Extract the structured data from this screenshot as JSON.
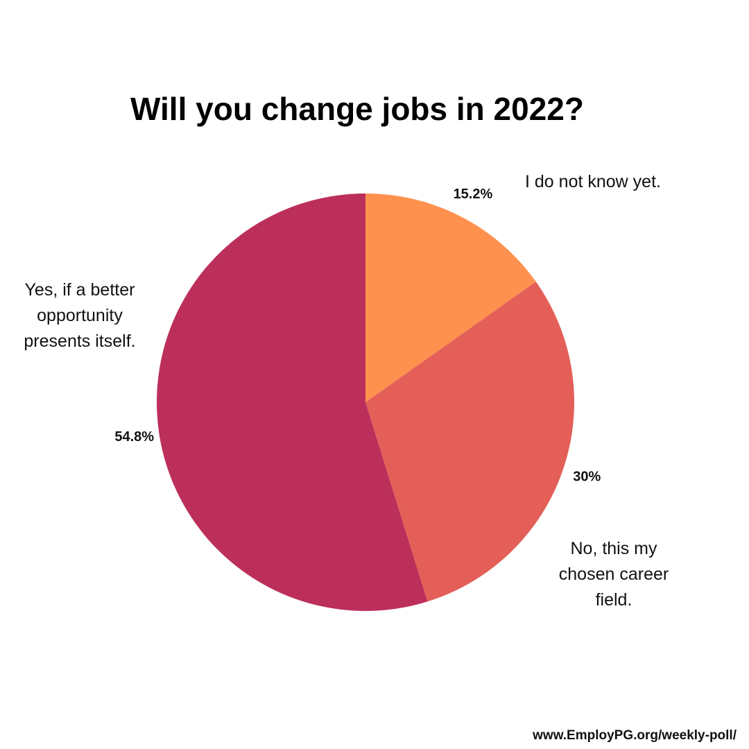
{
  "chart_data": {
    "type": "pie",
    "title": "Will you change jobs in 2022?",
    "categories": [
      "I do not know yet.",
      "No, this my chosen career field.",
      "Yes, if a better opportunity presents itself."
    ],
    "values": [
      15.2,
      30,
      54.8
    ],
    "value_labels": [
      "15.2%",
      "30%",
      "54.8%"
    ],
    "colors": [
      "#fe914e",
      "#e35f58",
      "#bc2f5a"
    ],
    "source": "www.EmployPG.org/weekly-poll/"
  }
}
